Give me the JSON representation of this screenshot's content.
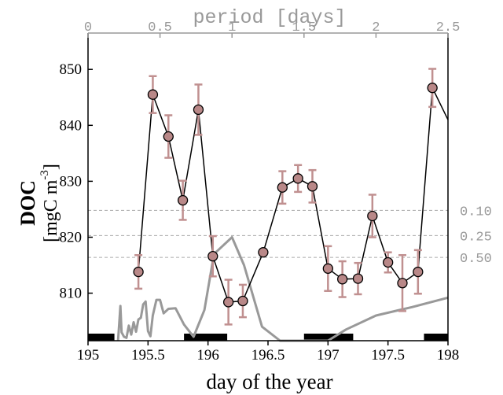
{
  "chart_data": {
    "type": "line",
    "xlabel": "day of the year",
    "ylabel_main": "DOC",
    "ylabel_units": "[mgC m",
    "ylabel_exponent": "-3",
    "ylabel_close": "]",
    "x_top_label": "period [days]",
    "xlim": [
      195,
      198
    ],
    "ylim": [
      801.5,
      856.5
    ],
    "x_ticks": [
      {
        "v": 195,
        "label": "195"
      },
      {
        "v": 195.5,
        "label": "195.5"
      },
      {
        "v": 196,
        "label": "196"
      },
      {
        "v": 196.5,
        "label": "196.5"
      },
      {
        "v": 197,
        "label": "197"
      },
      {
        "v": 197.5,
        "label": "197.5"
      },
      {
        "v": 198,
        "label": "198"
      }
    ],
    "y_ticks": [
      {
        "v": 810,
        "label": "810"
      },
      {
        "v": 820,
        "label": "820"
      },
      {
        "v": 830,
        "label": "830"
      },
      {
        "v": 840,
        "label": "840"
      },
      {
        "v": 850,
        "label": "850"
      }
    ],
    "top_ticks": [
      {
        "v": 0,
        "label": "0"
      },
      {
        "v": 0.5,
        "label": "0.5"
      },
      {
        "v": 1,
        "label": "1"
      },
      {
        "v": 1.5,
        "label": "1.5"
      },
      {
        "v": 2,
        "label": "2"
      },
      {
        "v": 2.5,
        "label": "2.5"
      }
    ],
    "top_axis_range": [
      0,
      2.5
    ],
    "doc_series": [
      {
        "x": 195.42,
        "y": 813.8,
        "err": 3.0
      },
      {
        "x": 195.54,
        "y": 845.5,
        "err": 3.3
      },
      {
        "x": 195.67,
        "y": 838.0,
        "err": 3.8
      },
      {
        "x": 195.79,
        "y": 826.6,
        "err": 3.5
      },
      {
        "x": 195.92,
        "y": 842.8,
        "err": 4.5
      },
      {
        "x": 196.04,
        "y": 816.6,
        "err": 3.6
      },
      {
        "x": 196.17,
        "y": 808.4,
        "err": 4.0
      },
      {
        "x": 196.29,
        "y": 808.6,
        "err": 2.9
      },
      {
        "x": 196.46,
        "y": 817.3,
        "err": 0
      },
      {
        "x": 196.62,
        "y": 828.9,
        "err": 2.9
      },
      {
        "x": 196.75,
        "y": 830.5,
        "err": 2.4
      },
      {
        "x": 196.87,
        "y": 829.1,
        "err": 2.9
      },
      {
        "x": 197.0,
        "y": 814.4,
        "err": 4.0
      },
      {
        "x": 197.12,
        "y": 812.5,
        "err": 3.2
      },
      {
        "x": 197.25,
        "y": 812.6,
        "err": 2.8
      },
      {
        "x": 197.37,
        "y": 823.8,
        "err": 3.8
      },
      {
        "x": 197.5,
        "y": 815.5,
        "err": 1.8
      },
      {
        "x": 197.62,
        "y": 811.8,
        "err": 5.0
      },
      {
        "x": 197.75,
        "y": 813.8,
        "err": 3.9
      },
      {
        "x": 197.87,
        "y": 846.7,
        "err": 3.4
      },
      {
        "x": 198.0,
        "y": 841.0,
        "err": 0
      }
    ],
    "periodogram_series": [
      {
        "x": 195.25,
        "y": 801.5
      },
      {
        "x": 195.27,
        "y": 807.7
      },
      {
        "x": 195.28,
        "y": 803.0
      },
      {
        "x": 195.3,
        "y": 802.2
      },
      {
        "x": 195.32,
        "y": 802.0
      },
      {
        "x": 195.34,
        "y": 804.2
      },
      {
        "x": 195.36,
        "y": 802.6
      },
      {
        "x": 195.38,
        "y": 804.8
      },
      {
        "x": 195.4,
        "y": 803.1
      },
      {
        "x": 195.42,
        "y": 805.3
      },
      {
        "x": 195.44,
        "y": 805.6
      },
      {
        "x": 195.46,
        "y": 808.0
      },
      {
        "x": 195.48,
        "y": 808.5
      },
      {
        "x": 195.5,
        "y": 803.2
      },
      {
        "x": 195.52,
        "y": 802.3
      },
      {
        "x": 195.54,
        "y": 806.0
      },
      {
        "x": 195.57,
        "y": 808.8
      },
      {
        "x": 195.6,
        "y": 808.8
      },
      {
        "x": 195.63,
        "y": 806.4
      },
      {
        "x": 195.67,
        "y": 807.2
      },
      {
        "x": 195.73,
        "y": 807.3
      },
      {
        "x": 195.8,
        "y": 804.4
      },
      {
        "x": 195.88,
        "y": 802.2
      },
      {
        "x": 195.97,
        "y": 807.0
      },
      {
        "x": 196.05,
        "y": 817.0
      },
      {
        "x": 196.2,
        "y": 820.0
      },
      {
        "x": 196.3,
        "y": 815.0
      },
      {
        "x": 196.45,
        "y": 804.0
      },
      {
        "x": 196.6,
        "y": 801.5
      },
      {
        "x": 196.8,
        "y": 801.5
      },
      {
        "x": 197.0,
        "y": 801.5
      },
      {
        "x": 197.15,
        "y": 803.5
      },
      {
        "x": 197.4,
        "y": 806.0
      },
      {
        "x": 197.7,
        "y": 807.5
      },
      {
        "x": 198.0,
        "y": 809.2
      }
    ],
    "significance_levels": [
      {
        "y": 824.8,
        "label": "0.10"
      },
      {
        "y": 820.3,
        "label": "0.25"
      },
      {
        "y": 816.4,
        "label": "0.50"
      }
    ],
    "night_bars": [
      {
        "x0": 195.0,
        "x1": 195.22
      },
      {
        "x0": 195.8,
        "x1": 196.16
      },
      {
        "x0": 196.8,
        "x1": 197.21
      },
      {
        "x0": 197.8,
        "x1": 198.0
      }
    ],
    "colors": {
      "marker_fill": "#b98888",
      "errorbar": "#c09090",
      "periodogram": "#999999",
      "top_axis": "#999999",
      "grid_dashed": "#aaaaaa",
      "night_bar": "#000000"
    }
  }
}
